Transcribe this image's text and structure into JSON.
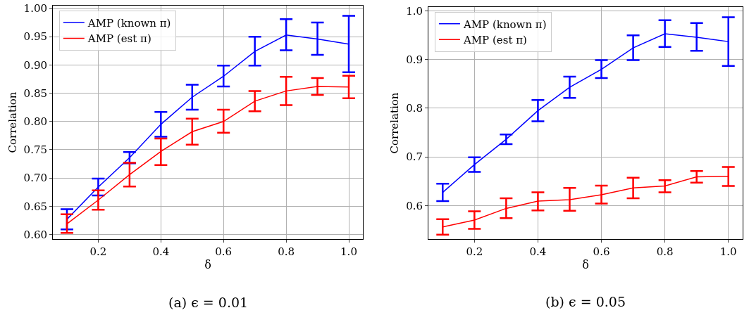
{
  "chart_data": [
    {
      "type": "line",
      "xlabel": "δ",
      "ylabel": "Correlation",
      "annotations": [
        "(a) ϵ = 0.01"
      ],
      "x": [
        0.1,
        0.2,
        0.3,
        0.4,
        0.5,
        0.6,
        0.7,
        0.8,
        0.9,
        1.0
      ],
      "xlim": [
        0.055,
        1.045
      ],
      "xticks": [
        0.2,
        0.4,
        0.6,
        0.8,
        {
          "value": 1.0,
          "label": "1.0"
        }
      ],
      "ylim": [
        0.592,
        1.005
      ],
      "yticks": [
        {
          "value": 0.6,
          "label": "0.60"
        },
        0.65,
        {
          "value": 0.7,
          "label": "0.70"
        },
        0.75,
        {
          "value": 0.8,
          "label": "0.80"
        },
        0.85,
        {
          "value": 0.9,
          "label": "0.90"
        },
        0.95,
        {
          "value": 1.0,
          "label": "1.00"
        }
      ],
      "grid": true,
      "legend": "top left",
      "marker": "none",
      "line_style": "solid",
      "series": [
        {
          "name": "AMP (known π)",
          "color": "#0000ff",
          "values": [
            0.627,
            0.684,
            0.736,
            0.795,
            0.843,
            0.88,
            0.924,
            0.953,
            0.946,
            0.937
          ],
          "errors": [
            [
              0.609,
              0.645
            ],
            [
              0.669,
              0.699
            ],
            [
              0.726,
              0.746
            ],
            [
              0.773,
              0.817
            ],
            [
              0.821,
              0.865
            ],
            [
              0.862,
              0.899
            ],
            [
              0.899,
              0.95
            ],
            [
              0.926,
              0.981
            ],
            [
              0.918,
              0.975
            ],
            [
              0.887,
              0.987
            ]
          ]
        },
        {
          "name": "AMP (est π)",
          "color": "#ff0000",
          "values": [
            0.619,
            0.661,
            0.706,
            0.747,
            0.782,
            0.8,
            0.836,
            0.854,
            0.862,
            0.861
          ],
          "errors": [
            [
              0.603,
              0.636
            ],
            [
              0.644,
              0.678
            ],
            [
              0.685,
              0.727
            ],
            [
              0.723,
              0.77
            ],
            [
              0.759,
              0.805
            ],
            [
              0.78,
              0.821
            ],
            [
              0.818,
              0.854
            ],
            [
              0.829,
              0.879
            ],
            [
              0.847,
              0.877
            ],
            [
              0.841,
              0.881
            ]
          ]
        }
      ]
    },
    {
      "type": "line",
      "xlabel": "δ",
      "ylabel": "Correlation",
      "annotations": [
        "(b) ϵ = 0.05"
      ],
      "x": [
        0.1,
        0.2,
        0.3,
        0.4,
        0.5,
        0.6,
        0.7,
        0.8,
        0.9,
        1.0
      ],
      "xlim": [
        0.055,
        1.045
      ],
      "xticks": [
        0.2,
        0.4,
        0.6,
        0.8,
        {
          "value": 1.0,
          "label": "1.0"
        }
      ],
      "ylim": [
        0.531,
        1.008
      ],
      "yticks": [
        0.6,
        0.7,
        0.8,
        0.9,
        {
          "value": 1.0,
          "label": "1.0"
        }
      ],
      "grid": true,
      "legend": "top left",
      "marker": "none",
      "line_style": "solid",
      "series": [
        {
          "name": "AMP (known π)",
          "color": "#0000ff",
          "values": [
            0.627,
            0.684,
            0.736,
            0.795,
            0.843,
            0.88,
            0.924,
            0.953,
            0.946,
            0.937
          ],
          "errors": [
            [
              0.609,
              0.645
            ],
            [
              0.669,
              0.699
            ],
            [
              0.726,
              0.746
            ],
            [
              0.773,
              0.817
            ],
            [
              0.821,
              0.865
            ],
            [
              0.862,
              0.899
            ],
            [
              0.899,
              0.95
            ],
            [
              0.926,
              0.981
            ],
            [
              0.918,
              0.975
            ],
            [
              0.887,
              0.987
            ]
          ]
        },
        {
          "name": "AMP (est π)",
          "color": "#ff0000",
          "values": [
            0.556,
            0.57,
            0.594,
            0.609,
            0.612,
            0.622,
            0.636,
            0.64,
            0.659,
            0.66
          ],
          "errors": [
            [
              0.54,
              0.572
            ],
            [
              0.552,
              0.588
            ],
            [
              0.574,
              0.615
            ],
            [
              0.59,
              0.627
            ],
            [
              0.589,
              0.636
            ],
            [
              0.604,
              0.641
            ],
            [
              0.615,
              0.657
            ],
            [
              0.627,
              0.652
            ],
            [
              0.647,
              0.671
            ],
            [
              0.64,
              0.679
            ]
          ]
        }
      ]
    }
  ]
}
